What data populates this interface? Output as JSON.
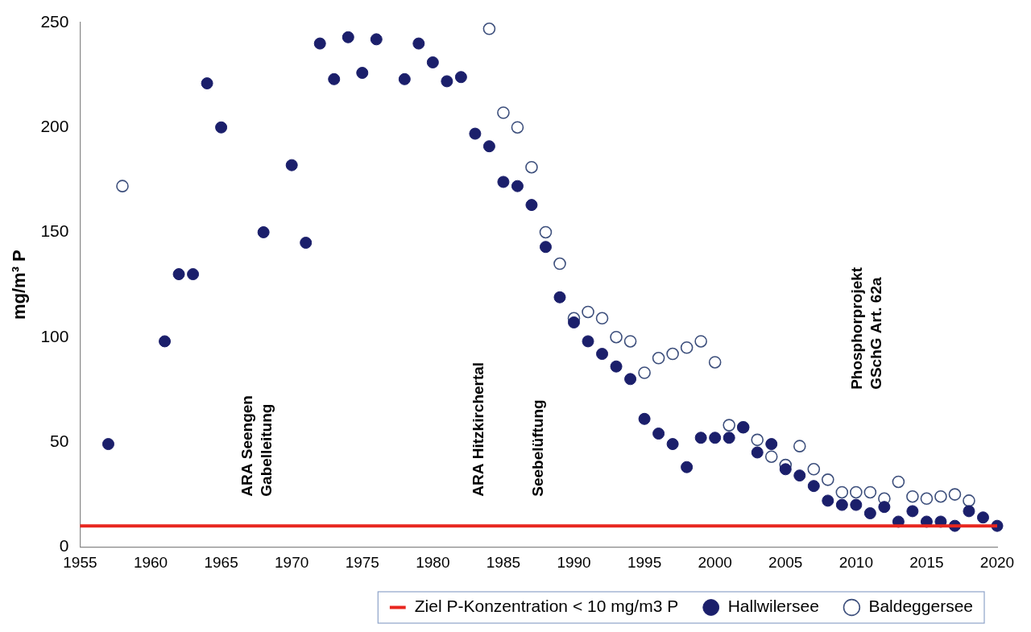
{
  "chart_data": {
    "type": "scatter",
    "y_label": "mg/m³ P",
    "xlim": [
      1955,
      2020
    ],
    "xticks": [
      1955,
      1960,
      1965,
      1970,
      1975,
      1980,
      1985,
      1990,
      1995,
      2000,
      2005,
      2010,
      2015,
      2020
    ],
    "ylim": [
      0,
      250
    ],
    "yticks": [
      0,
      50,
      100,
      150,
      200,
      250
    ],
    "grid": false,
    "legend": "bottom",
    "series": [
      {
        "name": "Ziel P-Konzentration < 10 mg/m3 P",
        "type": "line",
        "line_style": "solid",
        "color": "#e8261f",
        "x": [
          1955,
          2020
        ],
        "values": [
          10,
          10
        ]
      },
      {
        "name": "Hallwilersee",
        "type": "scatter",
        "marker": "circle",
        "color": "#1b1f6b",
        "x": [
          1957,
          1961,
          1962,
          1963,
          1964,
          1965,
          1968,
          1970,
          1971,
          1972,
          1973,
          1974,
          1975,
          1976,
          1978,
          1979,
          1980,
          1981,
          1982,
          1983,
          1984,
          1985,
          1986,
          1987,
          1988,
          1989,
          1990,
          1991,
          1992,
          1993,
          1994,
          1995,
          1996,
          1997,
          1998,
          1999,
          2000,
          2001,
          2002,
          2003,
          2004,
          2005,
          2006,
          2007,
          2008,
          2009,
          2010,
          2011,
          2012,
          2013,
          2014,
          2015,
          2016,
          2017,
          2018,
          2019,
          2020
        ],
        "values": [
          49,
          98,
          130,
          130,
          221,
          200,
          150,
          182,
          145,
          240,
          223,
          243,
          226,
          242,
          223,
          240,
          231,
          222,
          224,
          197,
          191,
          174,
          172,
          163,
          143,
          119,
          107,
          98,
          92,
          86,
          80,
          61,
          54,
          49,
          38,
          52,
          52,
          52,
          57,
          45,
          49,
          37,
          34,
          29,
          22,
          20,
          20,
          16,
          19,
          12,
          17,
          12,
          12,
          10,
          17,
          14,
          10
        ]
      },
      {
        "name": "Baldeggersee",
        "type": "scatter",
        "marker": "open_circle",
        "color": "#3d4f7c",
        "x": [
          1958,
          1984,
          1985,
          1986,
          1987,
          1988,
          1989,
          1990,
          1991,
          1992,
          1993,
          1994,
          1995,
          1996,
          1997,
          1998,
          1999,
          2000,
          2001,
          2002,
          2003,
          2004,
          2005,
          2006,
          2007,
          2008,
          2009,
          2010,
          2011,
          2012,
          2013,
          2014,
          2015,
          2016,
          2017,
          2018
        ],
        "values": [
          172,
          247,
          207,
          200,
          181,
          150,
          135,
          109,
          112,
          109,
          100,
          98,
          83,
          90,
          92,
          95,
          98,
          88,
          58,
          57,
          51,
          43,
          39,
          48,
          37,
          32,
          26,
          26,
          26,
          23,
          31,
          24,
          23,
          24,
          25,
          22
        ]
      }
    ],
    "annotations": [
      {
        "text": [
          "ARA Seengen",
          "Gabelleitung"
        ],
        "x": 1967.6,
        "y": 24
      },
      {
        "text": [
          "ARA Hitzkirchertal"
        ],
        "x": 1983.3,
        "y": 24
      },
      {
        "text": [
          "Seebelüftung"
        ],
        "x": 1987.5,
        "y": 24
      },
      {
        "text": [
          "Phosphorprojekt",
          "GSchG Art. 62a"
        ],
        "x": 2010.8,
        "y": 75
      }
    ]
  }
}
